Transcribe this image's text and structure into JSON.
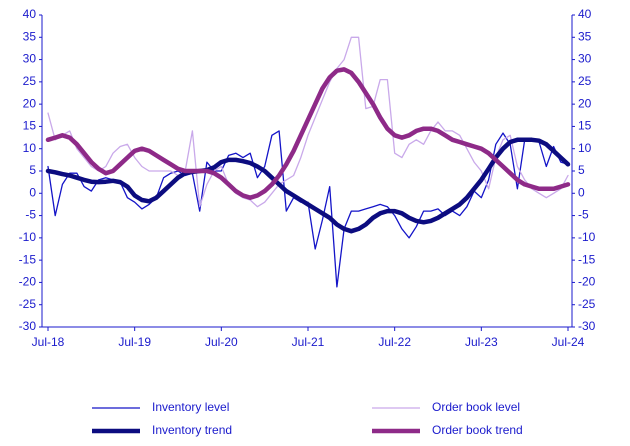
{
  "chart_data": {
    "type": "line",
    "categories": [
      "Jul-18",
      null,
      null,
      null,
      null,
      null,
      null,
      null,
      null,
      null,
      null,
      null,
      "Jul-19",
      null,
      null,
      null,
      null,
      null,
      null,
      null,
      null,
      null,
      null,
      null,
      "Jul-20",
      null,
      null,
      null,
      null,
      null,
      null,
      null,
      null,
      null,
      null,
      null,
      "Jul-21",
      null,
      null,
      null,
      null,
      null,
      null,
      null,
      null,
      null,
      null,
      null,
      "Jul-22",
      null,
      null,
      null,
      null,
      null,
      null,
      null,
      null,
      null,
      null,
      null,
      "Jul-23",
      null,
      null,
      null,
      null,
      null,
      null,
      null,
      null,
      null,
      null,
      null,
      "Jul-24"
    ],
    "series": [
      {
        "name": "Inventory level",
        "color": "#1414c8",
        "width": 1.3,
        "axis": "y",
        "values": [
          6,
          -5,
          2,
          4.5,
          4.5,
          1.5,
          0.5,
          3,
          3.5,
          3,
          2.5,
          -1,
          -2,
          -3.5,
          -2.5,
          -1,
          3.5,
          4.5,
          5,
          4,
          4.5,
          -4,
          7,
          5,
          5,
          8.5,
          9,
          8,
          9,
          3.5,
          6,
          13,
          14,
          -4,
          -1,
          -2,
          -2,
          -12.5,
          -6,
          1.5,
          -21,
          -8,
          -4,
          -4,
          -3.5,
          -3,
          -2.5,
          -3,
          -5,
          -8,
          -10,
          -7.5,
          -4,
          -4,
          -3.5,
          -5,
          -4,
          -5,
          -3,
          0.5,
          -1,
          3,
          11,
          13.5,
          11,
          1,
          12,
          12,
          11.5,
          6,
          10.5,
          7,
          6.5
        ]
      },
      {
        "name": "Order book level",
        "color": "#c9a9ea",
        "width": 1.3,
        "axis": "y",
        "values": [
          18,
          12,
          13,
          14,
          10,
          8,
          6,
          5,
          6,
          9,
          10.5,
          11,
          8,
          6,
          5,
          5,
          5,
          5,
          4,
          5,
          14,
          -3,
          2,
          5,
          6,
          2,
          0,
          -1,
          -1.5,
          -3,
          -2,
          0,
          2,
          3,
          4,
          8,
          13,
          17,
          21,
          25,
          28,
          30,
          35,
          35,
          19,
          19.5,
          25.5,
          25.5,
          9,
          8,
          11,
          12,
          11,
          14,
          16,
          14,
          14,
          13,
          10,
          7,
          5,
          1,
          8,
          12,
          13,
          6,
          3,
          1,
          0,
          -1,
          0,
          1,
          4
        ]
      },
      {
        "name": "Inventory trend",
        "color": "#0c0c80",
        "width": 4.5,
        "axis": "y",
        "values": [
          5,
          4.7,
          4.3,
          4,
          3.5,
          3,
          2.6,
          2.5,
          2.6,
          2.8,
          2.5,
          1.5,
          -0.5,
          -1.5,
          -1.8,
          -1,
          0.5,
          2,
          3.5,
          4.5,
          4.8,
          5,
          5.2,
          5.8,
          7,
          7.5,
          7.5,
          7.2,
          6.8,
          6,
          5,
          3.5,
          2,
          0.5,
          -0.5,
          -1.5,
          -2.5,
          -3.5,
          -4.5,
          -5.5,
          -7,
          -8,
          -8.5,
          -8,
          -7,
          -5.5,
          -4.5,
          -4,
          -4,
          -4.5,
          -5.5,
          -6.2,
          -6.5,
          -6.2,
          -5.5,
          -4.5,
          -3.5,
          -2.5,
          -1,
          1,
          3,
          5.5,
          8,
          10,
          11.5,
          12,
          12,
          12,
          11.8,
          11,
          9.5,
          8,
          6.5
        ]
      },
      {
        "name": "Order book trend",
        "color": "#8e2a88",
        "width": 4.5,
        "axis": "y",
        "values": [
          12,
          12.5,
          13,
          12.5,
          11,
          9,
          7,
          5.5,
          4.5,
          5,
          6.5,
          8,
          9.5,
          10,
          9.5,
          8.5,
          7.5,
          6.5,
          5.5,
          5,
          5,
          5,
          5,
          4.5,
          3.5,
          2,
          0.5,
          -0.5,
          -1,
          -0.5,
          0.5,
          2,
          4,
          6.5,
          9.5,
          13,
          16.5,
          20,
          23.5,
          26,
          27.5,
          27.8,
          27,
          25,
          22.5,
          20,
          17,
          14.5,
          13,
          12.5,
          13,
          14,
          14.5,
          14.5,
          14,
          13,
          12,
          11.5,
          11,
          10.5,
          10,
          9,
          7.5,
          6,
          4.5,
          3,
          2,
          1.5,
          1,
          1,
          1,
          1.5,
          2
        ]
      }
    ],
    "ylim": [
      -30,
      40
    ],
    "yticks": [
      -30,
      -25,
      -20,
      -15,
      -10,
      -5,
      0,
      5,
      10,
      15,
      20,
      25,
      30,
      35,
      40
    ],
    "y2lim": [
      -30,
      40
    ],
    "y2ticks": [
      -30,
      -25,
      -20,
      -15,
      -10,
      -5,
      0,
      5,
      10,
      15,
      20,
      25,
      30,
      35,
      40
    ],
    "grid": false,
    "legend": "bottom"
  }
}
